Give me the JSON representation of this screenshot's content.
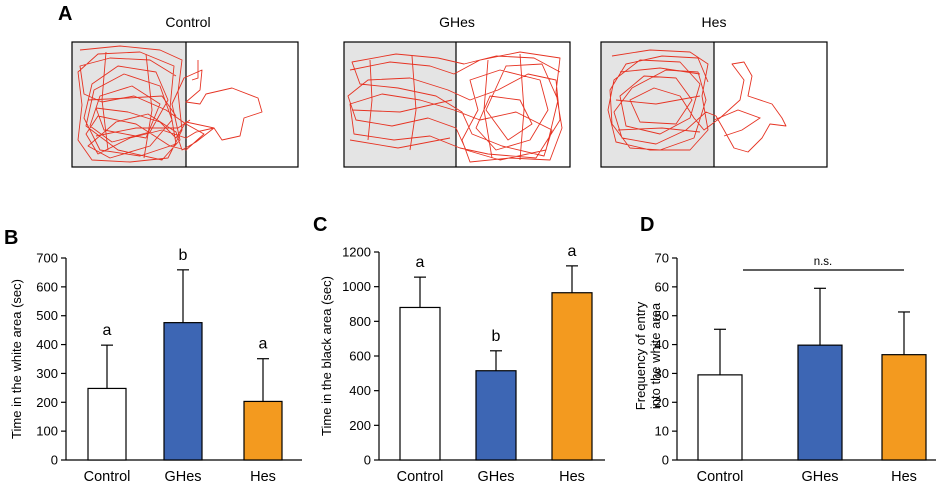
{
  "panel_a": {
    "letter": "A",
    "arenas": [
      {
        "title": "Control",
        "dark_color": "#e4e4e4",
        "path_color": "#e63323"
      },
      {
        "title": "GHes",
        "dark_color": "#e4e4e4",
        "path_color": "#e63323"
      },
      {
        "title": "Hes",
        "dark_color": "#e4e4e4",
        "path_color": "#e63323"
      }
    ]
  },
  "colors": {
    "control": "#ffffff",
    "ghes": "#3d66b4",
    "hes": "#f39a1f",
    "axis": "#000000"
  },
  "chart_data": [
    {
      "panel": "B",
      "type": "bar",
      "categories": [
        "Control",
        "GHes",
        "Hes"
      ],
      "values": [
        248,
        476,
        203
      ],
      "errors": [
        150,
        183,
        148
      ],
      "significance": [
        "a",
        "b",
        "a"
      ],
      "ylabel": "Time in the white area (sec)",
      "ylim": [
        0,
        700
      ],
      "yticks": [
        "0",
        "100",
        "200",
        "300",
        "400",
        "500",
        "600",
        "700"
      ]
    },
    {
      "panel": "C",
      "type": "bar",
      "categories": [
        "Control",
        "GHes",
        "Hes"
      ],
      "values": [
        880,
        515,
        965
      ],
      "errors": [
        175,
        115,
        155
      ],
      "significance": [
        "a",
        "b",
        "a"
      ],
      "ylabel": "Time in the black area (sec)",
      "ylim": [
        0,
        1200
      ],
      "yticks": [
        "0",
        "200",
        "400",
        "600",
        "800",
        "1000",
        "1200"
      ]
    },
    {
      "panel": "D",
      "type": "bar",
      "categories": [
        "Control",
        "GHes",
        "Hes"
      ],
      "values": [
        29.5,
        39.8,
        36.5
      ],
      "errors": [
        15.8,
        19.7,
        14.8
      ],
      "significance_bar": "n.s.",
      "ylabel_lines": [
        "Frequency of entry",
        "into the white area"
      ],
      "ylim": [
        0,
        70
      ],
      "yticks": [
        "0",
        "10",
        "20",
        "30",
        "40",
        "50",
        "60",
        "70"
      ]
    }
  ]
}
